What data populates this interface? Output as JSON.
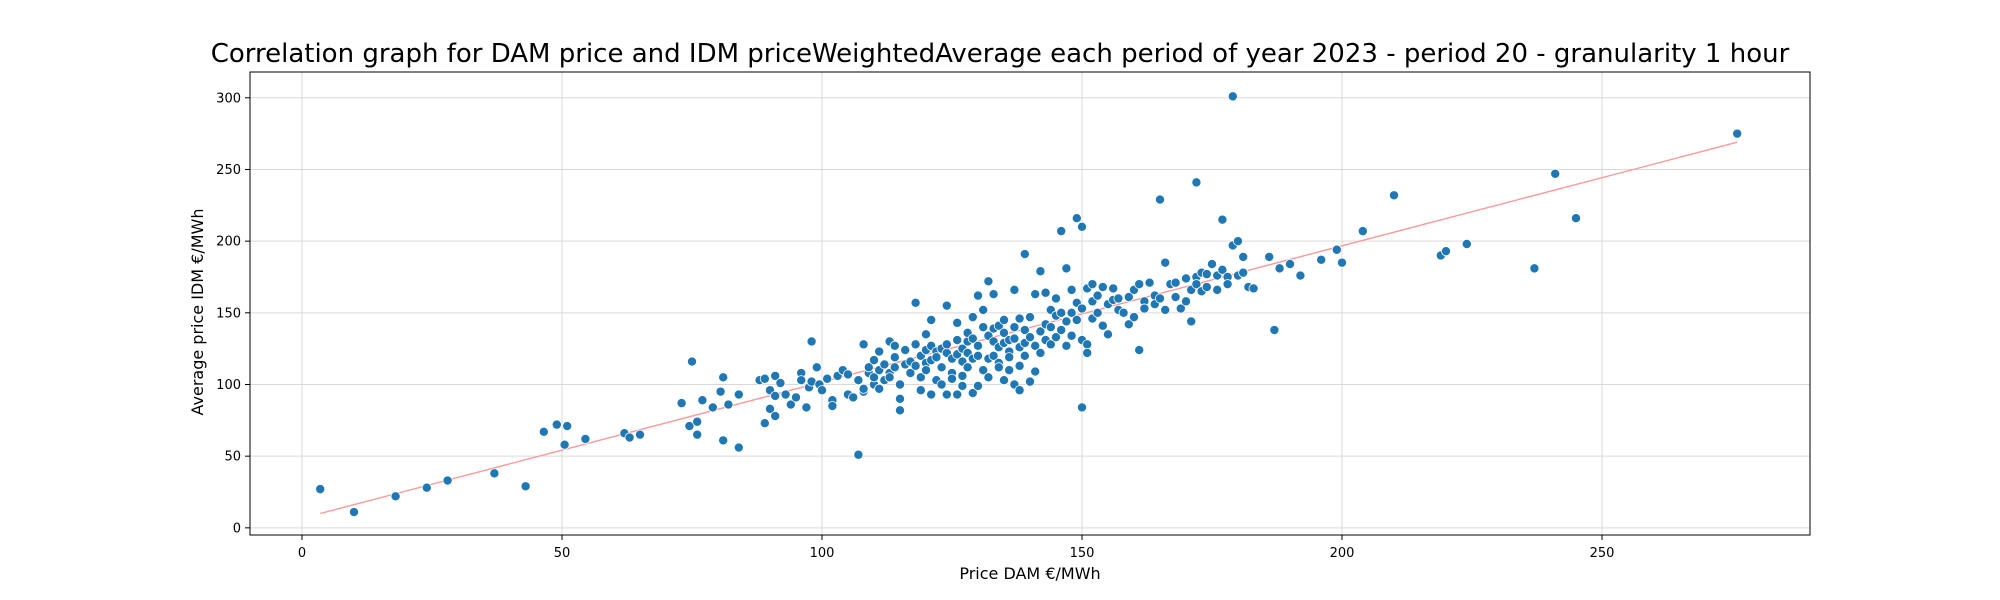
{
  "chart_data": {
    "type": "scatter",
    "title": "Correlation graph for DAM price and IDM priceWeightedAverage each period of year 2023 - period 20 - granularity 1 hour",
    "xlabel": "Price DAM €/MWh",
    "ylabel": "Average price IDM €/MWh",
    "xlim": [
      -10,
      290
    ],
    "ylim": [
      -5,
      318
    ],
    "xticks": [
      0,
      50,
      100,
      150,
      200,
      250
    ],
    "yticks": [
      0,
      50,
      100,
      150,
      200,
      250,
      300
    ],
    "grid": true,
    "point_color": "#1f77b4",
    "trendline": {
      "color": "#ff9999",
      "x": [
        3.5,
        276
      ],
      "y": [
        10,
        269
      ]
    },
    "points": [
      [
        3.5,
        27
      ],
      [
        10,
        11
      ],
      [
        18,
        22
      ],
      [
        24,
        28
      ],
      [
        28,
        33
      ],
      [
        37,
        38
      ],
      [
        43,
        29
      ],
      [
        46.5,
        67
      ],
      [
        49,
        72
      ],
      [
        51,
        71
      ],
      [
        50.5,
        58
      ],
      [
        54.5,
        62
      ],
      [
        62,
        66
      ],
      [
        63,
        63
      ],
      [
        65,
        65
      ],
      [
        73,
        87
      ],
      [
        74.5,
        71
      ],
      [
        75,
        116
      ],
      [
        76,
        74
      ],
      [
        76,
        65
      ],
      [
        77,
        89
      ],
      [
        79,
        84
      ],
      [
        80.5,
        95
      ],
      [
        81,
        61
      ],
      [
        81,
        105
      ],
      [
        82,
        86
      ],
      [
        84,
        56
      ],
      [
        84,
        93
      ],
      [
        88,
        103
      ],
      [
        89,
        73
      ],
      [
        89,
        104
      ],
      [
        90,
        83
      ],
      [
        90,
        96
      ],
      [
        91,
        78
      ],
      [
        91,
        92
      ],
      [
        91,
        106
      ],
      [
        92,
        101
      ],
      [
        93,
        93
      ],
      [
        94,
        86
      ],
      [
        95,
        91
      ],
      [
        96,
        108
      ],
      [
        96,
        103
      ],
      [
        97,
        84
      ],
      [
        97.5,
        98
      ],
      [
        98,
        102
      ],
      [
        98,
        130
      ],
      [
        99,
        112
      ],
      [
        99.5,
        100
      ],
      [
        100,
        96
      ],
      [
        101,
        104
      ],
      [
        102,
        89
      ],
      [
        102,
        85
      ],
      [
        103,
        106
      ],
      [
        104,
        110
      ],
      [
        105,
        107
      ],
      [
        105,
        93
      ],
      [
        106,
        91
      ],
      [
        107,
        51
      ],
      [
        107,
        103
      ],
      [
        108,
        95
      ],
      [
        108,
        97
      ],
      [
        108,
        128
      ],
      [
        109,
        108
      ],
      [
        109,
        112
      ],
      [
        110,
        100
      ],
      [
        110,
        117
      ],
      [
        110,
        105
      ],
      [
        111,
        110
      ],
      [
        111,
        123
      ],
      [
        111,
        97
      ],
      [
        112,
        114
      ],
      [
        112,
        103
      ],
      [
        113,
        108
      ],
      [
        113,
        130
      ],
      [
        113,
        105
      ],
      [
        114,
        119
      ],
      [
        114,
        112
      ],
      [
        114,
        127
      ],
      [
        115,
        90
      ],
      [
        115,
        100
      ],
      [
        115,
        82
      ],
      [
        116,
        124
      ],
      [
        116,
        114
      ],
      [
        117,
        108
      ],
      [
        117,
        116
      ],
      [
        118,
        128
      ],
      [
        118,
        113
      ],
      [
        118,
        157
      ],
      [
        119,
        105
      ],
      [
        119,
        120
      ],
      [
        119,
        96
      ],
      [
        120,
        124
      ],
      [
        120,
        115
      ],
      [
        120,
        110
      ],
      [
        120,
        135
      ],
      [
        121,
        117
      ],
      [
        121,
        145
      ],
      [
        121,
        127
      ],
      [
        121,
        93
      ],
      [
        122,
        123
      ],
      [
        122,
        103
      ],
      [
        122,
        119
      ],
      [
        123,
        125
      ],
      [
        123,
        112
      ],
      [
        123,
        100
      ],
      [
        124,
        155
      ],
      [
        124,
        122
      ],
      [
        124,
        93
      ],
      [
        124,
        128
      ],
      [
        125,
        108
      ],
      [
        125,
        118
      ],
      [
        125,
        104
      ],
      [
        126,
        131
      ],
      [
        126,
        93
      ],
      [
        126,
        121
      ],
      [
        126,
        143
      ],
      [
        127,
        116
      ],
      [
        127,
        125
      ],
      [
        127,
        106
      ],
      [
        127,
        99
      ],
      [
        128,
        130
      ],
      [
        128,
        112
      ],
      [
        128,
        136
      ],
      [
        128,
        122
      ],
      [
        129,
        132
      ],
      [
        129,
        94
      ],
      [
        129,
        118
      ],
      [
        129,
        147
      ],
      [
        130,
        162
      ],
      [
        130,
        120
      ],
      [
        130,
        127
      ],
      [
        130,
        99
      ],
      [
        131,
        110
      ],
      [
        131,
        140
      ],
      [
        131,
        152
      ],
      [
        132,
        172
      ],
      [
        132,
        134
      ],
      [
        132,
        118
      ],
      [
        132,
        105
      ],
      [
        133,
        163
      ],
      [
        133,
        139
      ],
      [
        133,
        130
      ],
      [
        133,
        120
      ],
      [
        134,
        141
      ],
      [
        134,
        126
      ],
      [
        134,
        115
      ],
      [
        134,
        112
      ],
      [
        135,
        136
      ],
      [
        135,
        129
      ],
      [
        135,
        103
      ],
      [
        135,
        145
      ],
      [
        136,
        131
      ],
      [
        136,
        123
      ],
      [
        136,
        119
      ],
      [
        136,
        110
      ],
      [
        137,
        140
      ],
      [
        137,
        166
      ],
      [
        137,
        100
      ],
      [
        137,
        132
      ],
      [
        138,
        126
      ],
      [
        138,
        146
      ],
      [
        138,
        113
      ],
      [
        138,
        96
      ],
      [
        139,
        191
      ],
      [
        139,
        138
      ],
      [
        139,
        120
      ],
      [
        139,
        129
      ],
      [
        140,
        133
      ],
      [
        140,
        102
      ],
      [
        140,
        147
      ],
      [
        141,
        109
      ],
      [
        141,
        163
      ],
      [
        141,
        127
      ],
      [
        142,
        179
      ],
      [
        142,
        122
      ],
      [
        142,
        137
      ],
      [
        143,
        164
      ],
      [
        143,
        142
      ],
      [
        143,
        131
      ],
      [
        144,
        152
      ],
      [
        144,
        128
      ],
      [
        144,
        140
      ],
      [
        145,
        133
      ],
      [
        145,
        160
      ],
      [
        145,
        148
      ],
      [
        146,
        207
      ],
      [
        146,
        150
      ],
      [
        146,
        138
      ],
      [
        147,
        181
      ],
      [
        147,
        127
      ],
      [
        147,
        144
      ],
      [
        148,
        166
      ],
      [
        148,
        150
      ],
      [
        148,
        134
      ],
      [
        149,
        216
      ],
      [
        149,
        157
      ],
      [
        149,
        145
      ],
      [
        150,
        84
      ],
      [
        150,
        210
      ],
      [
        150,
        131
      ],
      [
        150,
        153
      ],
      [
        151,
        128
      ],
      [
        151,
        122
      ],
      [
        151,
        167
      ],
      [
        152,
        146
      ],
      [
        152,
        170
      ],
      [
        152,
        158
      ],
      [
        153,
        150
      ],
      [
        153,
        162
      ],
      [
        154,
        141
      ],
      [
        154,
        168
      ],
      [
        155,
        156
      ],
      [
        155,
        135
      ],
      [
        156,
        159
      ],
      [
        156,
        167
      ],
      [
        157,
        152
      ],
      [
        157,
        160
      ],
      [
        158,
        150
      ],
      [
        159,
        161
      ],
      [
        159,
        142
      ],
      [
        160,
        166
      ],
      [
        160,
        147
      ],
      [
        161,
        124
      ],
      [
        161,
        170
      ],
      [
        162,
        158
      ],
      [
        162,
        153
      ],
      [
        163,
        171
      ],
      [
        164,
        162
      ],
      [
        164,
        156
      ],
      [
        165,
        229
      ],
      [
        165,
        160
      ],
      [
        166,
        152
      ],
      [
        166,
        185
      ],
      [
        167,
        170
      ],
      [
        168,
        171
      ],
      [
        168,
        161
      ],
      [
        169,
        153
      ],
      [
        170,
        158
      ],
      [
        170,
        174
      ],
      [
        171,
        144
      ],
      [
        171,
        166
      ],
      [
        172,
        241
      ],
      [
        172,
        175
      ],
      [
        172,
        170
      ],
      [
        173,
        178
      ],
      [
        173,
        165
      ],
      [
        174,
        168
      ],
      [
        174,
        177
      ],
      [
        175,
        184
      ],
      [
        176,
        166
      ],
      [
        176,
        176
      ],
      [
        177,
        215
      ],
      [
        177,
        180
      ],
      [
        178,
        175
      ],
      [
        178,
        170
      ],
      [
        179,
        301
      ],
      [
        179,
        197
      ],
      [
        180,
        200
      ],
      [
        180,
        176
      ],
      [
        181,
        178
      ],
      [
        181,
        189
      ],
      [
        182,
        168
      ],
      [
        183,
        167
      ],
      [
        186,
        189
      ],
      [
        187,
        138
      ],
      [
        188,
        181
      ],
      [
        190,
        184
      ],
      [
        192,
        176
      ],
      [
        196,
        187
      ],
      [
        199,
        194
      ],
      [
        200,
        185
      ],
      [
        204,
        207
      ],
      [
        210,
        232
      ],
      [
        219,
        190
      ],
      [
        220,
        193
      ],
      [
        224,
        198
      ],
      [
        237,
        181
      ],
      [
        241,
        247
      ],
      [
        245,
        216
      ],
      [
        276,
        275
      ]
    ]
  }
}
